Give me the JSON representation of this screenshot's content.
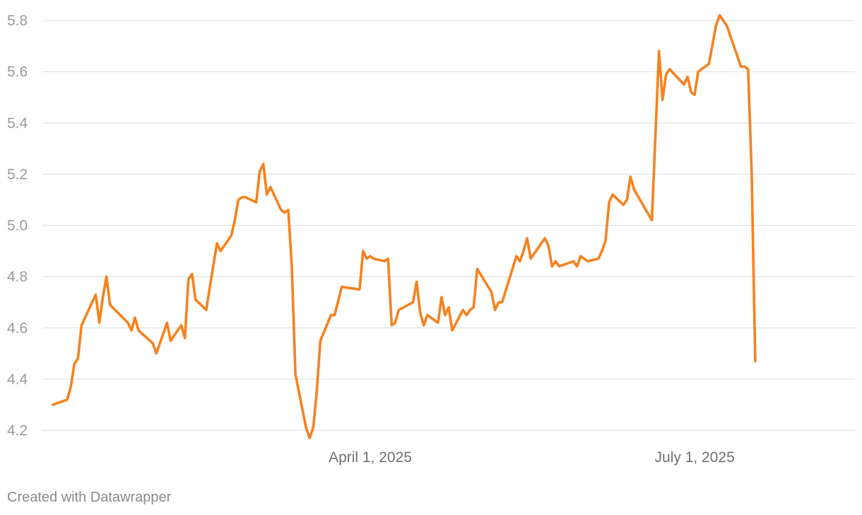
{
  "credit": "Created with Datawrapper",
  "colors": {
    "line": "#f5821f",
    "grid": "#e3e3e3",
    "axis_text": "#9a9a9a"
  },
  "chart_data": {
    "type": "line",
    "title": "",
    "xlabel": "",
    "ylabel": "",
    "grid": "horizontal",
    "xlim": [
      "2025-01-02",
      "2025-08-11"
    ],
    "ylim": [
      4.2,
      5.8
    ],
    "y_ticks": [
      "4.2",
      "4.4",
      "4.6",
      "4.8",
      "5.0",
      "5.2",
      "5.4",
      "5.6",
      "5.8"
    ],
    "x_ticks": [
      {
        "date": "2025-04-01",
        "label": "April 1, 2025"
      },
      {
        "date": "2025-07-01",
        "label": "July 1, 2025"
      }
    ],
    "series": [
      {
        "color": "#f5821f",
        "points": [
          [
            "2025-01-02",
            4.3
          ],
          [
            "2025-01-06",
            4.32
          ],
          [
            "2025-01-07",
            4.37
          ],
          [
            "2025-01-08",
            4.46
          ],
          [
            "2025-01-09",
            4.48
          ],
          [
            "2025-01-10",
            4.61
          ],
          [
            "2025-01-13",
            4.7
          ],
          [
            "2025-01-14",
            4.73
          ],
          [
            "2025-01-15",
            4.62
          ],
          [
            "2025-01-16",
            4.72
          ],
          [
            "2025-01-17",
            4.8
          ],
          [
            "2025-01-18",
            4.69
          ],
          [
            "2025-01-23",
            4.62
          ],
          [
            "2025-01-24",
            4.59
          ],
          [
            "2025-01-25",
            4.64
          ],
          [
            "2025-01-26",
            4.59
          ],
          [
            "2025-01-30",
            4.54
          ],
          [
            "2025-01-31",
            4.5
          ],
          [
            "2025-02-03",
            4.62
          ],
          [
            "2025-02-04",
            4.55
          ],
          [
            "2025-02-07",
            4.61
          ],
          [
            "2025-02-08",
            4.56
          ],
          [
            "2025-02-09",
            4.79
          ],
          [
            "2025-02-10",
            4.81
          ],
          [
            "2025-02-11",
            4.71
          ],
          [
            "2025-02-14",
            4.67
          ],
          [
            "2025-02-15",
            4.76
          ],
          [
            "2025-02-17",
            4.93
          ],
          [
            "2025-02-18",
            4.9
          ],
          [
            "2025-02-21",
            4.96
          ],
          [
            "2025-02-22",
            5.02
          ],
          [
            "2025-02-23",
            5.1
          ],
          [
            "2025-02-24",
            5.11
          ],
          [
            "2025-02-25",
            5.11
          ],
          [
            "2025-02-28",
            5.09
          ],
          [
            "2025-03-01",
            5.21
          ],
          [
            "2025-03-02",
            5.24
          ],
          [
            "2025-03-03",
            5.12
          ],
          [
            "2025-03-04",
            5.15
          ],
          [
            "2025-03-07",
            5.06
          ],
          [
            "2025-03-08",
            5.05
          ],
          [
            "2025-03-09",
            5.06
          ],
          [
            "2025-03-10",
            4.84
          ],
          [
            "2025-03-11",
            4.42
          ],
          [
            "2025-03-14",
            4.21
          ],
          [
            "2025-03-15",
            4.17
          ],
          [
            "2025-03-16",
            4.21
          ],
          [
            "2025-03-17",
            4.35
          ],
          [
            "2025-03-18",
            4.55
          ],
          [
            "2025-03-21",
            4.65
          ],
          [
            "2025-03-22",
            4.65
          ],
          [
            "2025-03-24",
            4.76
          ],
          [
            "2025-03-29",
            4.75
          ],
          [
            "2025-03-30",
            4.9
          ],
          [
            "2025-03-31",
            4.87
          ],
          [
            "2025-04-01",
            4.88
          ],
          [
            "2025-04-02",
            4.87
          ],
          [
            "2025-04-05",
            4.86
          ],
          [
            "2025-04-06",
            4.87
          ],
          [
            "2025-04-07",
            4.61
          ],
          [
            "2025-04-08",
            4.62
          ],
          [
            "2025-04-09",
            4.67
          ],
          [
            "2025-04-13",
            4.7
          ],
          [
            "2025-04-14",
            4.78
          ],
          [
            "2025-04-15",
            4.66
          ],
          [
            "2025-04-16",
            4.61
          ],
          [
            "2025-04-17",
            4.65
          ],
          [
            "2025-04-20",
            4.62
          ],
          [
            "2025-04-21",
            4.72
          ],
          [
            "2025-04-22",
            4.65
          ],
          [
            "2025-04-23",
            4.68
          ],
          [
            "2025-04-24",
            4.59
          ],
          [
            "2025-04-27",
            4.67
          ],
          [
            "2025-04-28",
            4.65
          ],
          [
            "2025-04-29",
            4.67
          ],
          [
            "2025-04-30",
            4.68
          ],
          [
            "2025-05-01",
            4.83
          ],
          [
            "2025-05-05",
            4.74
          ],
          [
            "2025-05-06",
            4.67
          ],
          [
            "2025-05-07",
            4.7
          ],
          [
            "2025-05-08",
            4.7
          ],
          [
            "2025-05-12",
            4.88
          ],
          [
            "2025-05-13",
            4.86
          ],
          [
            "2025-05-14",
            4.9
          ],
          [
            "2025-05-15",
            4.95
          ],
          [
            "2025-05-16",
            4.87
          ],
          [
            "2025-05-20",
            4.95
          ],
          [
            "2025-05-21",
            4.92
          ],
          [
            "2025-05-22",
            4.84
          ],
          [
            "2025-05-23",
            4.86
          ],
          [
            "2025-05-24",
            4.84
          ],
          [
            "2025-05-28",
            4.86
          ],
          [
            "2025-05-29",
            4.84
          ],
          [
            "2025-05-30",
            4.88
          ],
          [
            "2025-06-01",
            4.86
          ],
          [
            "2025-06-04",
            4.87
          ],
          [
            "2025-06-05",
            4.9
          ],
          [
            "2025-06-06",
            4.94
          ],
          [
            "2025-06-07",
            5.09
          ],
          [
            "2025-06-08",
            5.12
          ],
          [
            "2025-06-11",
            5.08
          ],
          [
            "2025-06-12",
            5.1
          ],
          [
            "2025-06-13",
            5.19
          ],
          [
            "2025-06-14",
            5.14
          ],
          [
            "2025-06-19",
            5.02
          ],
          [
            "2025-06-20",
            5.35
          ],
          [
            "2025-06-21",
            5.68
          ],
          [
            "2025-06-22",
            5.49
          ],
          [
            "2025-06-23",
            5.59
          ],
          [
            "2025-06-24",
            5.61
          ],
          [
            "2025-06-28",
            5.55
          ],
          [
            "2025-06-29",
            5.58
          ],
          [
            "2025-06-30",
            5.52
          ],
          [
            "2025-07-01",
            5.51
          ],
          [
            "2025-07-02",
            5.6
          ],
          [
            "2025-07-05",
            5.63
          ],
          [
            "2025-07-07",
            5.78
          ],
          [
            "2025-07-08",
            5.82
          ],
          [
            "2025-07-10",
            5.78
          ],
          [
            "2025-07-14",
            5.62
          ],
          [
            "2025-07-15",
            5.62
          ],
          [
            "2025-07-16",
            5.61
          ],
          [
            "2025-07-17",
            5.2
          ],
          [
            "2025-07-18",
            4.47
          ]
        ]
      }
    ]
  }
}
